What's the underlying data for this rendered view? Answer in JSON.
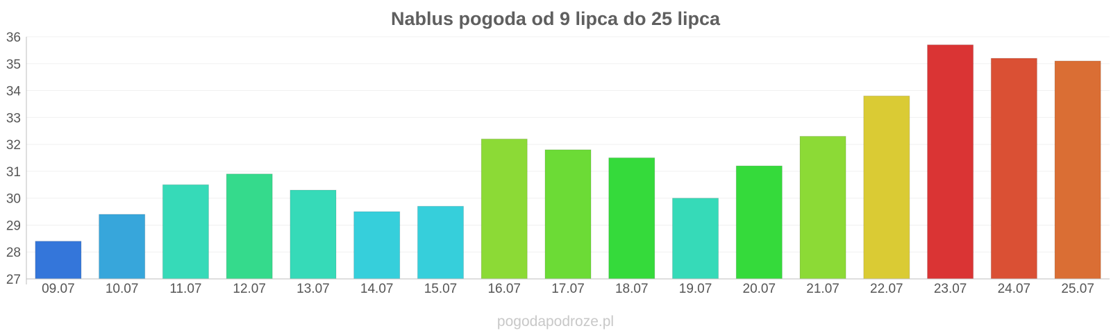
{
  "chart_data": {
    "type": "bar",
    "title": "Nablus pogoda od 9 lipca do 25 lipca",
    "categories": [
      "09.07",
      "10.07",
      "11.07",
      "12.07",
      "13.07",
      "14.07",
      "15.07",
      "16.07",
      "17.07",
      "18.07",
      "19.07",
      "20.07",
      "21.07",
      "22.07",
      "23.07",
      "24.07",
      "25.07"
    ],
    "values": [
      28.4,
      29.4,
      30.5,
      30.9,
      30.3,
      29.5,
      29.7,
      32.2,
      31.8,
      31.5,
      30.0,
      31.2,
      32.3,
      33.8,
      35.7,
      35.2,
      35.1
    ],
    "colors": [
      "#3476da",
      "#37a6db",
      "#36dab8",
      "#35da8c",
      "#36dab8",
      "#36cfdb",
      "#36cfdb",
      "#8cda36",
      "#6cdb36",
      "#35da3b",
      "#36dab8",
      "#35da3b",
      "#8cda36",
      "#dacb34",
      "#da3434",
      "#da5034",
      "#da6e34"
    ],
    "ylim": [
      27,
      36
    ],
    "yticks": [
      27,
      28,
      29,
      30,
      31,
      32,
      33,
      34,
      35,
      36
    ],
    "xlabel": "",
    "ylabel": "",
    "grid": true,
    "legend": "none"
  },
  "footer": {
    "credit": "pogodapodroze.pl"
  }
}
